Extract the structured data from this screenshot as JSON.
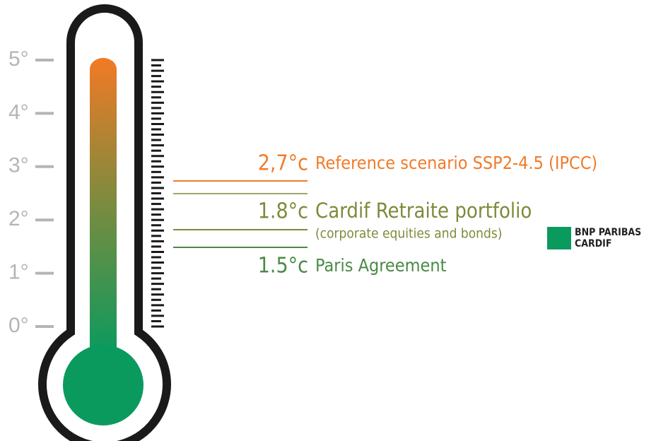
{
  "scale": {
    "labels": [
      "5°",
      "4°",
      "3°",
      "2°",
      "1°",
      "0°"
    ]
  },
  "markers": [
    {
      "value": "2,7°c",
      "label": "Reference scenario SSP2-4.5 (IPCC)"
    },
    {
      "value": "1.8°c",
      "label": "Cardif Retraite portfolio",
      "sublabel": "(corporate equities and bonds)"
    },
    {
      "value": "1.5°c",
      "label": "Paris Agreement"
    }
  ],
  "logo": {
    "line1": "BNP PARIBAS",
    "line2": "CARDIF"
  }
}
